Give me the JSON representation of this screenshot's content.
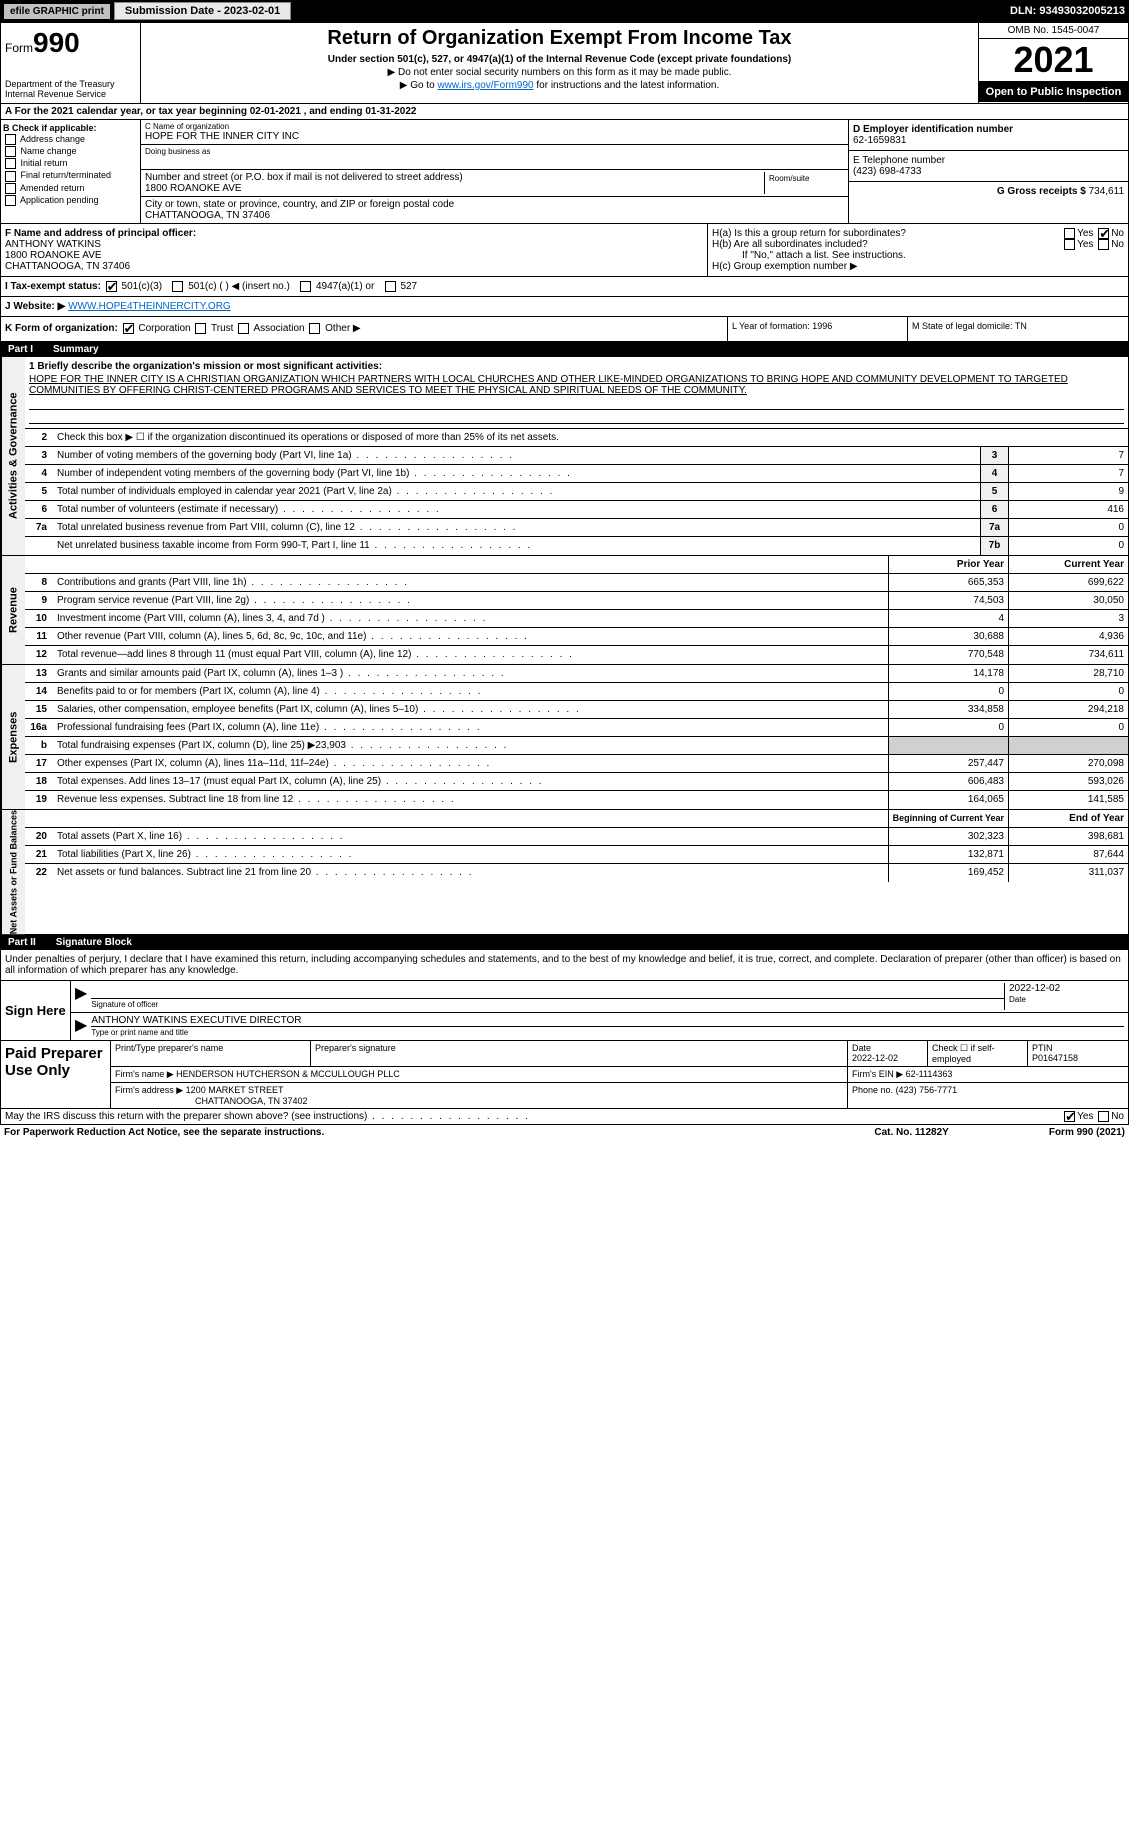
{
  "top": {
    "efile": "efile GRAPHIC print",
    "submission_btn": "Submission Date - 2023-02-01",
    "dln": "DLN: 93493032005213"
  },
  "header": {
    "form_prefix": "Form",
    "form_number": "990",
    "title": "Return of Organization Exempt From Income Tax",
    "subtitle": "Under section 501(c), 527, or 4947(a)(1) of the Internal Revenue Code (except private foundations)",
    "note1": "▶ Do not enter social security numbers on this form as it may be made public.",
    "note2_pre": "▶ Go to ",
    "note2_link": "www.irs.gov/Form990",
    "note2_post": " for instructions and the latest information.",
    "dept": "Department of the Treasury Internal Revenue Service",
    "omb": "OMB No. 1545-0047",
    "year": "2021",
    "open_pub": "Open to Public Inspection"
  },
  "tax_year": "A For the 2021 calendar year, or tax year beginning 02-01-2021    , and ending 01-31-2022",
  "section_b": {
    "check_label": "B Check if applicable:",
    "checks": [
      "Address change",
      "Name change",
      "Initial return",
      "Final return/terminated",
      "Amended return",
      "Application pending"
    ],
    "name_lbl": "C Name of organization",
    "name": "HOPE FOR THE INNER CITY INC",
    "dba_lbl": "Doing business as",
    "addr_lbl": "Number and street (or P.O. box if mail is not delivered to street address)",
    "addr": "1800 ROANOKE AVE",
    "room_lbl": "Room/suite",
    "city_lbl": "City or town, state or province, country, and ZIP or foreign postal code",
    "city": "CHATTANOOGA, TN  37406",
    "ein_lbl": "D Employer identification number",
    "ein": "62-1659831",
    "phone_lbl": "E Telephone number",
    "phone": "(423) 698-4733",
    "gross_lbl": "G Gross receipts $",
    "gross": "734,611"
  },
  "fg": {
    "f_lbl": "F Name and address of principal officer:",
    "f_name": "ANTHONY WATKINS",
    "f_addr1": "1800 ROANOKE AVE",
    "f_addr2": "CHATTANOOGA, TN  37406",
    "ha": "H(a)  Is this a group return for subordinates?",
    "hb": "H(b)  Are all subordinates included?",
    "hb_note": "If \"No,\" attach a list. See instructions.",
    "hc": "H(c)  Group exemption number ▶",
    "yes": "Yes",
    "no": "No"
  },
  "tax_status": {
    "label": "I  Tax-exempt status:",
    "c3": "501(c)(3)",
    "c_other": "501(c) (   ) ◀ (insert no.)",
    "a1": "4947(a)(1) or",
    "s527": "527"
  },
  "website": {
    "label": "J Website: ▶",
    "value": "WWW.HOPE4THEINNERCITY.ORG"
  },
  "k_row": {
    "label": "K Form of organization:",
    "corp": "Corporation",
    "trust": "Trust",
    "assoc": "Association",
    "other": "Other ▶",
    "l": "L Year of formation: 1996",
    "m": "M State of legal domicile: TN"
  },
  "part1": {
    "roman": "Part I",
    "title": "Summary",
    "gov_label": "Activities & Governance",
    "rev_label": "Revenue",
    "exp_label": "Expenses",
    "net_label": "Net Assets or Fund Balances",
    "q1": "1  Briefly describe the organization's mission or most significant activities:",
    "mission": "HOPE FOR THE INNER CITY IS A CHRISTIAN ORGANIZATION WHICH PARTNERS WITH LOCAL CHURCHES AND OTHER LIKE-MINDED ORGANIZATIONS TO BRING HOPE AND COMMUNITY DEVELOPMENT TO TARGETED COMMUNITIES BY OFFERING CHRIST-CENTERED PROGRAMS AND SERVICES TO MEET THE PHYSICAL AND SPIRITUAL NEEDS OF THE COMMUNITY.",
    "q2": "Check this box ▶ ☐  if the organization discontinued its operations or disposed of more than 25% of its net assets.",
    "rows_gov": [
      {
        "n": "3",
        "label": "Number of voting members of the governing body (Part VI, line 1a)",
        "box": "3",
        "val": "7"
      },
      {
        "n": "4",
        "label": "Number of independent voting members of the governing body (Part VI, line 1b)",
        "box": "4",
        "val": "7"
      },
      {
        "n": "5",
        "label": "Total number of individuals employed in calendar year 2021 (Part V, line 2a)",
        "box": "5",
        "val": "9"
      },
      {
        "n": "6",
        "label": "Total number of volunteers (estimate if necessary)",
        "box": "6",
        "val": "416"
      },
      {
        "n": "7a",
        "label": "Total unrelated business revenue from Part VIII, column (C), line 12",
        "box": "7a",
        "val": "0"
      },
      {
        "n": "",
        "label": "Net unrelated business taxable income from Form 990-T, Part I, line 11",
        "box": "7b",
        "val": "0"
      }
    ],
    "col_prior": "Prior Year",
    "col_current": "Current Year",
    "rows_rev": [
      {
        "n": "8",
        "label": "Contributions and grants (Part VIII, line 1h)",
        "prior": "665,353",
        "curr": "699,622"
      },
      {
        "n": "9",
        "label": "Program service revenue (Part VIII, line 2g)",
        "prior": "74,503",
        "curr": "30,050"
      },
      {
        "n": "10",
        "label": "Investment income (Part VIII, column (A), lines 3, 4, and 7d )",
        "prior": "4",
        "curr": "3"
      },
      {
        "n": "11",
        "label": "Other revenue (Part VIII, column (A), lines 5, 6d, 8c, 9c, 10c, and 11e)",
        "prior": "30,688",
        "curr": "4,936"
      },
      {
        "n": "12",
        "label": "Total revenue—add lines 8 through 11 (must equal Part VIII, column (A), line 12)",
        "prior": "770,548",
        "curr": "734,611"
      }
    ],
    "rows_exp": [
      {
        "n": "13",
        "label": "Grants and similar amounts paid (Part IX, column (A), lines 1–3 )",
        "prior": "14,178",
        "curr": "28,710"
      },
      {
        "n": "14",
        "label": "Benefits paid to or for members (Part IX, column (A), line 4)",
        "prior": "0",
        "curr": "0"
      },
      {
        "n": "15",
        "label": "Salaries, other compensation, employee benefits (Part IX, column (A), lines 5–10)",
        "prior": "334,858",
        "curr": "294,218"
      },
      {
        "n": "16a",
        "label": "Professional fundraising fees (Part IX, column (A), line 11e)",
        "prior": "0",
        "curr": "0"
      },
      {
        "n": "b",
        "label": "Total fundraising expenses (Part IX, column (D), line 25) ▶23,903",
        "prior": "",
        "curr": "",
        "shaded": true
      },
      {
        "n": "17",
        "label": "Other expenses (Part IX, column (A), lines 11a–11d, 11f–24e)",
        "prior": "257,447",
        "curr": "270,098"
      },
      {
        "n": "18",
        "label": "Total expenses. Add lines 13–17 (must equal Part IX, column (A), line 25)",
        "prior": "606,483",
        "curr": "593,026"
      },
      {
        "n": "19",
        "label": "Revenue less expenses. Subtract line 18 from line 12",
        "prior": "164,065",
        "curr": "141,585"
      }
    ],
    "col_begin": "Beginning of Current Year",
    "col_end": "End of Year",
    "rows_net": [
      {
        "n": "20",
        "label": "Total assets (Part X, line 16)",
        "prior": "302,323",
        "curr": "398,681"
      },
      {
        "n": "21",
        "label": "Total liabilities (Part X, line 26)",
        "prior": "132,871",
        "curr": "87,644"
      },
      {
        "n": "22",
        "label": "Net assets or fund balances. Subtract line 21 from line 20",
        "prior": "169,452",
        "curr": "311,037"
      }
    ]
  },
  "part2": {
    "roman": "Part II",
    "title": "Signature Block",
    "declare": "Under penalties of perjury, I declare that I have examined this return, including accompanying schedules and statements, and to the best of my knowledge and belief, it is true, correct, and complete. Declaration of preparer (other than officer) is based on all information of which preparer has any knowledge.",
    "sign_here": "Sign Here",
    "sig_officer": "Signature of officer",
    "date": "Date",
    "sig_date": "2022-12-02",
    "officer_name": "ANTHONY WATKINS EXECUTIVE DIRECTOR",
    "type_name": "Type or print name and title",
    "paid_label": "Paid Preparer Use Only",
    "prep_name_lbl": "Print/Type preparer's name",
    "prep_sig_lbl": "Preparer's signature",
    "prep_date": "2022-12-02",
    "check_self": "Check ☐ if self-employed",
    "ptin_lbl": "PTIN",
    "ptin": "P01647158",
    "firm_name_lbl": "Firm's name    ▶",
    "firm_name": "HENDERSON HUTCHERSON & MCCULLOUGH PLLC",
    "firm_ein_lbl": "Firm's EIN ▶",
    "firm_ein": "62-1114363",
    "firm_addr_lbl": "Firm's address ▶",
    "firm_addr1": "1200 MARKET STREET",
    "firm_addr2": "CHATTANOOGA, TN  37402",
    "firm_phone_lbl": "Phone no.",
    "firm_phone": "(423) 756-7771",
    "discuss": "May the IRS discuss this return with the preparer shown above? (see instructions)",
    "yes": "Yes",
    "no": "No"
  },
  "footer": {
    "left": "For Paperwork Reduction Act Notice, see the separate instructions.",
    "mid": "Cat. No. 11282Y",
    "right": "Form 990 (2021)"
  }
}
